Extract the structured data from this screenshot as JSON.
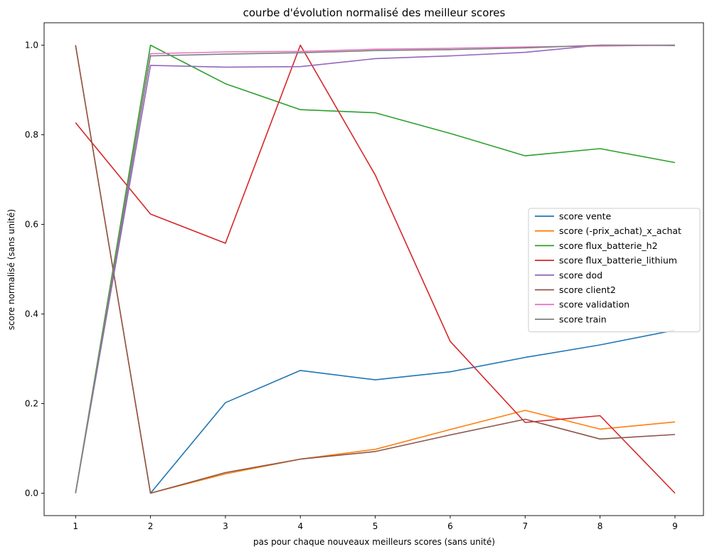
{
  "chart_data": {
    "type": "line",
    "title": "courbe d'évolution normalisé des meilleur scores",
    "xlabel": "pas pour chaque nouveaux meilleurs scores (sans unité)",
    "ylabel": "score normalisé (sans unité)",
    "x": [
      1,
      2,
      3,
      4,
      5,
      6,
      7,
      8,
      9
    ],
    "xlim": [
      0.58,
      9.38
    ],
    "ylim": [
      -0.05,
      1.05
    ],
    "xticks": [
      "1",
      "2",
      "3",
      "4",
      "5",
      "6",
      "7",
      "8",
      "9"
    ],
    "yticks": [
      "0.0",
      "0.2",
      "0.4",
      "0.6",
      "0.8",
      "1.0"
    ],
    "grid": false,
    "legend_position": "center-right",
    "series": [
      {
        "name": "score vente",
        "color": "#1f77b4",
        "x": [
          2,
          3,
          4,
          5,
          6,
          7,
          8,
          9
        ],
        "values": [
          0.0,
          0.202,
          0.274,
          0.253,
          0.271,
          0.303,
          0.331,
          0.364
        ]
      },
      {
        "name": "score (-prix_achat)_x_achat",
        "color": "#ff7f0e",
        "x": [
          1,
          2,
          3,
          4,
          5,
          6,
          7,
          8,
          9
        ],
        "values": [
          1.0,
          0.0,
          0.043,
          0.076,
          0.098,
          0.142,
          0.185,
          0.143,
          0.159
        ]
      },
      {
        "name": "score flux_batterie_h2",
        "color": "#2ca02c",
        "x": [
          1,
          2,
          3,
          4,
          5,
          6,
          7,
          8,
          9
        ],
        "values": [
          0.0,
          1.0,
          0.914,
          0.856,
          0.849,
          0.803,
          0.753,
          0.769,
          0.738
        ]
      },
      {
        "name": "score flux_batterie_lithium",
        "color": "#d62728",
        "x": [
          1,
          2,
          3,
          4,
          5,
          6,
          7,
          8,
          9
        ],
        "values": [
          0.827,
          0.623,
          0.558,
          1.0,
          0.71,
          0.339,
          0.158,
          0.173,
          0.0
        ]
      },
      {
        "name": "score dod",
        "color": "#9467bd",
        "x": [
          1,
          2,
          3,
          4,
          5,
          6,
          7,
          8,
          9
        ],
        "values": [
          0.0,
          0.955,
          0.951,
          0.952,
          0.97,
          0.976,
          0.984,
          1.0,
          0.999
        ]
      },
      {
        "name": "score client2",
        "color": "#8c564b",
        "x": [
          1,
          2,
          3,
          4,
          5,
          6,
          7,
          8,
          9
        ],
        "values": [
          1.0,
          0.0,
          0.046,
          0.076,
          0.093,
          0.13,
          0.165,
          0.121,
          0.131
        ]
      },
      {
        "name": "score validation",
        "color": "#e377c2",
        "x": [
          1,
          2,
          3,
          4,
          5,
          6,
          7,
          8,
          9
        ],
        "values": [
          0.0,
          0.981,
          0.985,
          0.986,
          0.991,
          0.993,
          0.996,
          0.998,
          1.0
        ]
      },
      {
        "name": "score train",
        "color": "#7f7f7f",
        "x": [
          1,
          2,
          3,
          4,
          5,
          6,
          7,
          8,
          9
        ],
        "values": [
          0.0,
          0.976,
          0.98,
          0.983,
          0.988,
          0.99,
          0.994,
          1.0,
          1.0
        ]
      }
    ]
  }
}
